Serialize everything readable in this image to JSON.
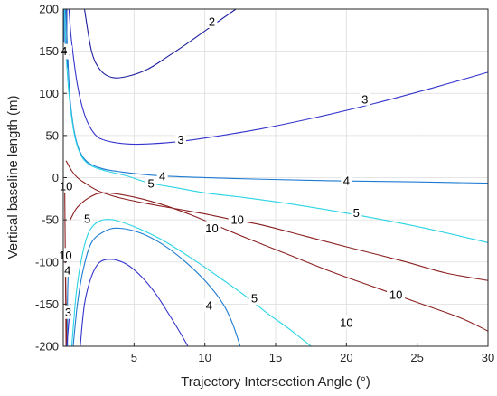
{
  "chart_data": {
    "type": "contour",
    "title": "",
    "xlabel": "Trajectory Intersection Angle (°)",
    "ylabel": "Vertical baseline length (m)",
    "xlim": [
      0,
      30
    ],
    "ylim": [
      -200,
      200
    ],
    "x_ticks": [
      5,
      10,
      15,
      20,
      25,
      30
    ],
    "y_ticks": [
      -200,
      -150,
      -100,
      -50,
      0,
      50,
      100,
      150,
      200
    ],
    "grid": true,
    "legend": "none",
    "contours": [
      {
        "level": 2,
        "label": "2",
        "color": "#1f1f9f",
        "points": [
          [
            1.5,
            200
          ],
          [
            2.0,
            150
          ],
          [
            2.6,
            128
          ],
          [
            3.4,
            119
          ],
          [
            4.5,
            120
          ],
          [
            6,
            129
          ],
          [
            7.5,
            145
          ],
          [
            9,
            162
          ],
          [
            10.5,
            180
          ],
          [
            12.2,
            200
          ]
        ],
        "labels": [
          [
            10.5,
            185
          ]
        ]
      },
      {
        "level": 2,
        "label": "",
        "color": "#1f1f9f",
        "points": [
          [
            0.25,
            200
          ],
          [
            0.25,
            160
          ],
          [
            0.3,
            130
          ]
        ],
        "labels": []
      },
      {
        "level": 3,
        "label": "3",
        "color": "#3434cc",
        "points": [
          [
            0.4,
            200
          ],
          [
            0.6,
            160
          ],
          [
            1.0,
            110
          ],
          [
            1.5,
            75
          ],
          [
            2.2,
            52
          ],
          [
            3,
            44
          ],
          [
            4.5,
            40
          ],
          [
            6,
            40
          ],
          [
            8,
            42.5
          ],
          [
            10,
            47
          ],
          [
            14,
            58
          ],
          [
            18,
            72
          ],
          [
            22,
            88
          ],
          [
            26,
            106
          ],
          [
            30,
            125
          ]
        ],
        "labels": [
          [
            8.3,
            45
          ],
          [
            21.3,
            93
          ]
        ]
      },
      {
        "level": 3,
        "label": "3",
        "color": "#3434cc",
        "points": [
          [
            0.15,
            200
          ],
          [
            0.15,
            160
          ],
          [
            0.2,
            140
          ]
        ],
        "labels": [
          [
            0.25,
            148
          ]
        ]
      },
      {
        "level": 4,
        "label": "4",
        "color": "#1e7bd2",
        "points": [
          [
            0.2,
            200
          ],
          [
            0.3,
            150
          ],
          [
            0.5,
            90
          ],
          [
            0.9,
            45
          ],
          [
            1.5,
            22
          ],
          [
            2.5,
            12
          ],
          [
            4,
            7
          ],
          [
            7,
            2
          ],
          [
            12,
            -1
          ],
          [
            17,
            -3
          ],
          [
            20,
            -4
          ],
          [
            25,
            -5
          ],
          [
            30,
            -6.5
          ]
        ],
        "labels": [
          [
            7.0,
            1.5
          ],
          [
            20.0,
            -4
          ]
        ]
      },
      {
        "level": 4,
        "label": "4",
        "color": "#1e7bd2",
        "points": [
          [
            0.05,
            200
          ],
          [
            0.05,
            160
          ]
        ],
        "labels": [
          [
            0.05,
            150
          ]
        ]
      },
      {
        "level": 5,
        "label": "5",
        "color": "#2ad4e4",
        "points": [
          [
            0.1,
            200
          ],
          [
            0.2,
            150
          ],
          [
            0.4,
            100
          ],
          [
            0.8,
            50
          ],
          [
            1.3,
            25
          ],
          [
            2,
            14
          ],
          [
            3,
            8
          ],
          [
            4.5,
            2
          ],
          [
            6,
            -6
          ],
          [
            8,
            -12
          ],
          [
            10,
            -18
          ],
          [
            13,
            -24
          ],
          [
            16,
            -31
          ],
          [
            20,
            -42
          ],
          [
            25,
            -58
          ],
          [
            30,
            -77
          ]
        ],
        "labels": [
          [
            6.2,
            -7
          ],
          [
            20.7,
            -42
          ]
        ]
      },
      {
        "level": 10,
        "label": "10",
        "color": "#8b2020",
        "points": [
          [
            0.2,
            20
          ],
          [
            0.6,
            8
          ],
          [
            1.0,
            0
          ],
          [
            1.5,
            -6
          ],
          [
            2.5,
            -16
          ],
          [
            4,
            -24
          ],
          [
            6,
            -31
          ],
          [
            8,
            -37
          ],
          [
            10,
            -43
          ],
          [
            12,
            -50
          ],
          [
            14,
            -56
          ],
          [
            17,
            -69
          ],
          [
            20,
            -82
          ],
          [
            24,
            -99
          ],
          [
            27,
            -113
          ],
          [
            30,
            -122
          ]
        ],
        "labels": [
          [
            12.3,
            -50
          ]
        ]
      },
      {
        "level": 10,
        "label": "10",
        "color": "#8b2020",
        "points": [
          [
            0.5,
            -50
          ],
          [
            1,
            -35
          ],
          [
            2,
            -22
          ],
          [
            3,
            -18
          ],
          [
            5,
            -23
          ],
          [
            7,
            -32
          ],
          [
            9,
            -44
          ],
          [
            11,
            -58
          ],
          [
            13,
            -72
          ],
          [
            16,
            -92
          ],
          [
            19,
            -112
          ],
          [
            22,
            -130
          ],
          [
            25,
            -148
          ],
          [
            28,
            -166
          ],
          [
            30,
            -182
          ]
        ],
        "labels": [
          [
            10.5,
            -60
          ],
          [
            23.5,
            -139
          ]
        ]
      },
      {
        "level": 10,
        "label": "10",
        "color": "#8b2020",
        "points": [
          [
            0.1,
            -10
          ],
          [
            0.15,
            -100
          ],
          [
            0.2,
            -200
          ]
        ],
        "labels": [
          [
            0.2,
            -10
          ],
          [
            0.15,
            -92
          ]
        ]
      },
      {
        "level": 10,
        "label": "10",
        "color": "#8b2020",
        "points": [
          [
            0.15,
            -100
          ],
          [
            0.25,
            -200
          ]
        ],
        "labels": [
          [
            20.0,
            -172
          ]
        ]
      },
      {
        "level": 5,
        "label": "5",
        "color": "#2ad4e4",
        "points": [
          [
            0.6,
            -200
          ],
          [
            0.9,
            -140
          ],
          [
            1.3,
            -95
          ],
          [
            1.8,
            -65
          ],
          [
            2.5,
            -52
          ],
          [
            3.5,
            -50
          ],
          [
            5,
            -58
          ],
          [
            7,
            -74
          ],
          [
            9,
            -95
          ],
          [
            11,
            -118
          ],
          [
            13,
            -142
          ],
          [
            14.5,
            -162
          ],
          [
            16,
            -180
          ],
          [
            17.5,
            -200
          ]
        ],
        "labels": [
          [
            1.7,
            -49
          ],
          [
            13.5,
            -143
          ]
        ]
      },
      {
        "level": 4,
        "label": "4",
        "color": "#1e7bd2",
        "points": [
          [
            0.7,
            -200
          ],
          [
            1.0,
            -150
          ],
          [
            1.4,
            -110
          ],
          [
            2,
            -77
          ],
          [
            3,
            -63
          ],
          [
            4,
            -60
          ],
          [
            5.5,
            -66
          ],
          [
            7,
            -79
          ],
          [
            8.5,
            -98
          ],
          [
            10,
            -122
          ],
          [
            11.3,
            -150
          ],
          [
            12,
            -175
          ],
          [
            12.5,
            -200
          ]
        ],
        "labels": [
          [
            10.3,
            -152
          ]
        ]
      },
      {
        "level": 4,
        "label": "4",
        "color": "#1e7bd2",
        "points": [
          [
            0.3,
            -200
          ],
          [
            0.3,
            -150
          ],
          [
            0.35,
            -110
          ]
        ],
        "labels": [
          [
            0.3,
            -110
          ]
        ]
      },
      {
        "level": 3,
        "label": "3",
        "color": "#3434cc",
        "points": [
          [
            1.2,
            -200
          ],
          [
            1.5,
            -150
          ],
          [
            2,
            -117
          ],
          [
            2.6,
            -100
          ],
          [
            3.5,
            -97
          ],
          [
            4.5,
            -103
          ],
          [
            5.5,
            -117
          ],
          [
            6.5,
            -137
          ],
          [
            7.5,
            -163
          ],
          [
            8.3,
            -185
          ],
          [
            8.8,
            -200
          ]
        ],
        "labels": [
          [
            0.35,
            -160
          ]
        ]
      },
      {
        "level": 3,
        "label": "",
        "color": "#3434cc",
        "points": [
          [
            0.25,
            -200
          ],
          [
            0.4,
            -170
          ],
          [
            0.5,
            -150
          ]
        ],
        "labels": []
      }
    ]
  }
}
